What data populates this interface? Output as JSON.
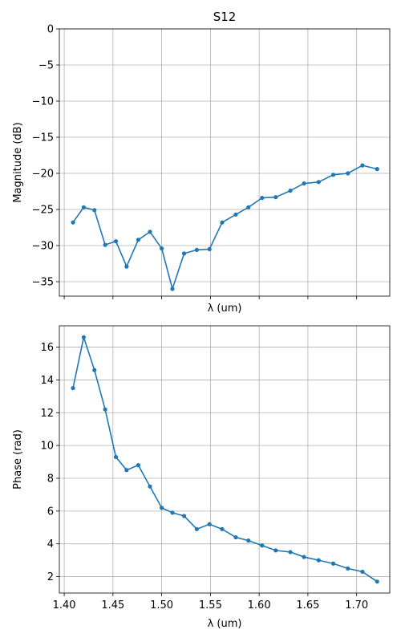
{
  "figure": {
    "title": "S12",
    "colors": {
      "series": "#1f77b4",
      "grid": "#b0b0b0",
      "background": "#ffffff"
    }
  },
  "chart_data": [
    {
      "type": "line",
      "title": "S12",
      "xlabel": "λ (um)",
      "ylabel": "Magnitude (dB)",
      "xlim": [
        1.395,
        1.734
      ],
      "ylim": [
        -37,
        0
      ],
      "xticks": [
        1.4,
        1.45,
        1.5,
        1.55,
        1.6,
        1.65,
        1.7
      ],
      "xtick_labels_visible": false,
      "yticks": [
        0,
        -5,
        -10,
        -15,
        -20,
        -25,
        -30,
        -35
      ],
      "ytick_labels": [
        "0",
        "−5",
        "−10",
        "−15",
        "−20",
        "−25",
        "−30",
        "−35"
      ],
      "grid": true,
      "marker": "dot",
      "x": [
        1.409,
        1.42,
        1.431,
        1.442,
        1.453,
        1.464,
        1.476,
        1.488,
        1.5,
        1.511,
        1.523,
        1.536,
        1.549,
        1.562,
        1.576,
        1.589,
        1.603,
        1.617,
        1.632,
        1.646,
        1.661,
        1.676,
        1.691,
        1.706,
        1.721
      ],
      "series": [
        {
          "values": [
            -26.8,
            -24.7,
            -25.1,
            -29.9,
            -29.4,
            -32.9,
            -29.2,
            -28.1,
            -30.4,
            -36.0,
            -31.1,
            -30.6,
            -30.5,
            -26.8,
            -25.7,
            -24.7,
            -23.4,
            -23.3,
            -22.4,
            -21.4,
            -21.2,
            -20.2,
            -20.0,
            -18.9,
            -19.4
          ]
        }
      ]
    },
    {
      "type": "line",
      "title": "",
      "xlabel": "λ (um)",
      "ylabel": "Phase (rad)",
      "xlim": [
        1.395,
        1.734
      ],
      "ylim": [
        1.0,
        17.3
      ],
      "xticks": [
        1.4,
        1.45,
        1.5,
        1.55,
        1.6,
        1.65,
        1.7
      ],
      "xtick_labels": [
        "1.40",
        "1.45",
        "1.50",
        "1.55",
        "1.60",
        "1.65",
        "1.70"
      ],
      "yticks": [
        2,
        4,
        6,
        8,
        10,
        12,
        14,
        16
      ],
      "ytick_labels": [
        "2",
        "4",
        "6",
        "8",
        "10",
        "12",
        "14",
        "16"
      ],
      "grid": true,
      "marker": "dot",
      "x": [
        1.409,
        1.42,
        1.431,
        1.442,
        1.453,
        1.464,
        1.476,
        1.488,
        1.5,
        1.511,
        1.523,
        1.536,
        1.549,
        1.562,
        1.576,
        1.589,
        1.603,
        1.617,
        1.632,
        1.646,
        1.661,
        1.676,
        1.691,
        1.706,
        1.721
      ],
      "series": [
        {
          "values": [
            13.5,
            16.6,
            14.6,
            12.2,
            9.3,
            8.5,
            8.8,
            7.5,
            6.2,
            5.9,
            5.7,
            4.9,
            5.2,
            4.9,
            4.4,
            4.2,
            3.9,
            3.6,
            3.5,
            3.2,
            3.0,
            2.8,
            2.5,
            2.3,
            1.7
          ]
        }
      ]
    }
  ]
}
